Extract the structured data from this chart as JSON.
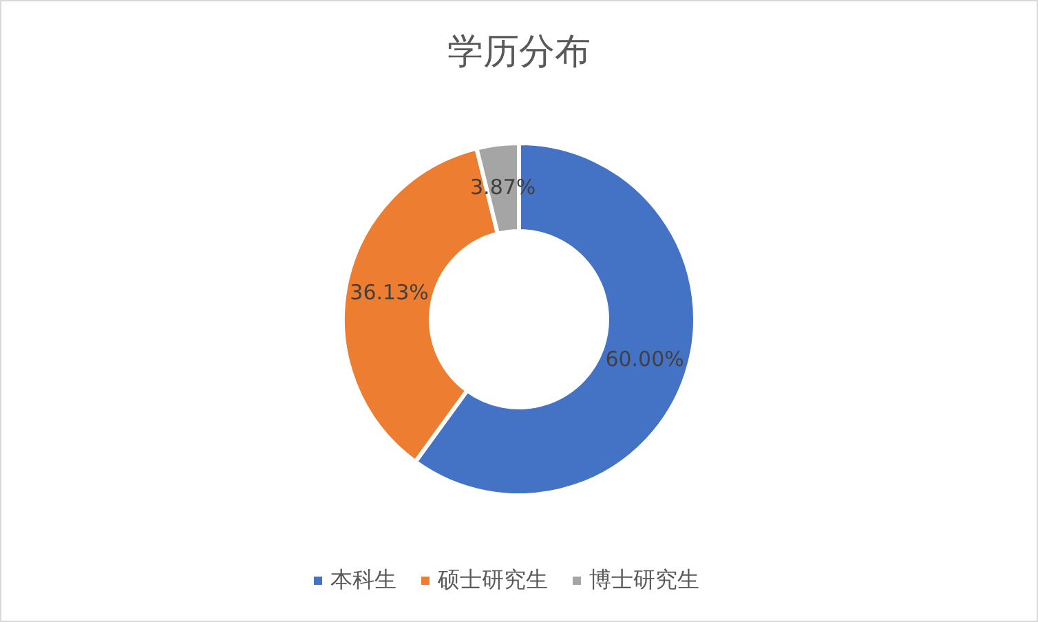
{
  "chart_data": {
    "type": "donut",
    "title": "学历分布",
    "categories": [
      "本科生",
      "硕士研究生",
      "博士研究生"
    ],
    "values": [
      60,
      36.13,
      3.87
    ],
    "value_labels": [
      "60.00%",
      "36.13%",
      "3.87%"
    ],
    "colors": [
      "#4472c4",
      "#ed7d31",
      "#a5a5a5"
    ],
    "legend": "bottom"
  }
}
